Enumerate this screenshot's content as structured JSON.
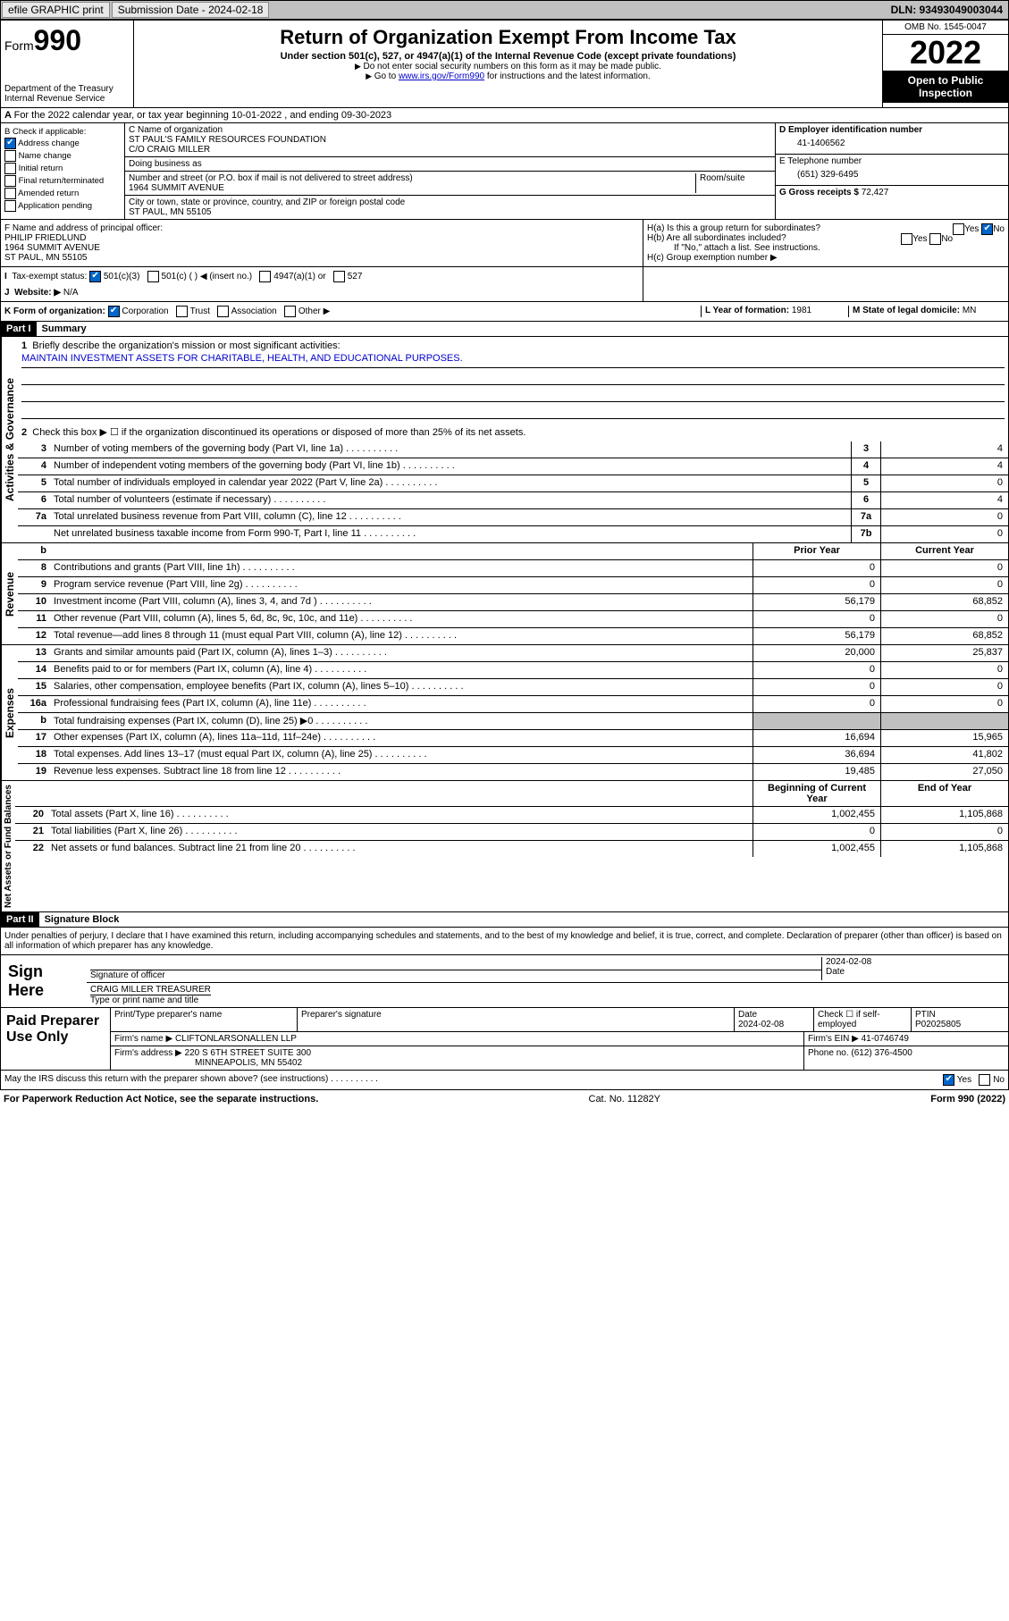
{
  "topbar": {
    "efile": "efile GRAPHIC print",
    "subdate_label": "Submission Date - 2024-02-18",
    "dln": "DLN: 93493049003044"
  },
  "header": {
    "form_label": "Form",
    "form_num": "990",
    "dept": "Department of the Treasury",
    "irs": "Internal Revenue Service",
    "title": "Return of Organization Exempt From Income Tax",
    "sub": "Under section 501(c), 527, or 4947(a)(1) of the Internal Revenue Code (except private foundations)",
    "note1": "Do not enter social security numbers on this form as it may be made public.",
    "note2_a": "Go to ",
    "note2_link": "www.irs.gov/Form990",
    "note2_b": " for instructions and the latest information.",
    "omb": "OMB No. 1545-0047",
    "year": "2022",
    "open": "Open to Public Inspection"
  },
  "row_a": "For the 2022 calendar year, or tax year beginning 10-01-2022   , and ending 09-30-2023",
  "box_b": {
    "title": "B Check if applicable:",
    "items": [
      "Address change",
      "Name change",
      "Initial return",
      "Final return/terminated",
      "Amended return",
      "Application pending"
    ],
    "checked": [
      true,
      false,
      false,
      false,
      false,
      false
    ]
  },
  "box_c": {
    "name_label": "C Name of organization",
    "name": "ST PAUL'S FAMILY RESOURCES FOUNDATION",
    "co": "C/O CRAIG MILLER",
    "dba_label": "Doing business as",
    "dba": "",
    "street_label": "Number and street (or P.O. box if mail is not delivered to street address)",
    "room_label": "Room/suite",
    "street": "1964 SUMMIT AVENUE",
    "city_label": "City or town, state or province, country, and ZIP or foreign postal code",
    "city": "ST PAUL, MN  55105"
  },
  "box_d": {
    "label": "D Employer identification number",
    "val": "41-1406562"
  },
  "box_e": {
    "label": "E Telephone number",
    "val": "(651) 329-6495"
  },
  "box_g": {
    "label": "G Gross receipts $",
    "val": "72,427"
  },
  "box_f": {
    "label": "F  Name and address of principal officer:",
    "name": "PHILIP FRIEDLUND",
    "street": "1964 SUMMIT AVENUE",
    "city": "ST PAUL, MN  55105"
  },
  "box_h": {
    "ha": "H(a)  Is this a group return for subordinates?",
    "hb": "H(b)  Are all subordinates included?",
    "hb_note": "If \"No,\" attach a list. See instructions.",
    "hc": "H(c)  Group exemption number ▶"
  },
  "box_i": {
    "label": "Tax-exempt status:",
    "opts": [
      "501(c)(3)",
      "501(c) (  ) ◀ (insert no.)",
      "4947(a)(1) or",
      "527"
    ]
  },
  "box_j": {
    "label": "Website: ▶",
    "val": "N/A"
  },
  "box_k": {
    "label": "K Form of organization:",
    "opts": [
      "Corporation",
      "Trust",
      "Association",
      "Other ▶"
    ]
  },
  "box_l": {
    "label": "L Year of formation:",
    "val": "1981"
  },
  "box_m": {
    "label": "M State of legal domicile:",
    "val": "MN"
  },
  "part1": {
    "hdr": "Part I",
    "title": "Summary",
    "q1": "Briefly describe the organization's mission or most significant activities:",
    "mission": "MAINTAIN INVESTMENT ASSETS FOR CHARITABLE, HEALTH, AND EDUCATIONAL PURPOSES.",
    "q2": "Check this box ▶ ☐  if the organization discontinued its operations or disposed of more than 25% of its net assets.",
    "lines_gov": [
      {
        "n": "3",
        "d": "Number of voting members of the governing body (Part VI, line 1a)",
        "b": "3",
        "v": "4"
      },
      {
        "n": "4",
        "d": "Number of independent voting members of the governing body (Part VI, line 1b)",
        "b": "4",
        "v": "4"
      },
      {
        "n": "5",
        "d": "Total number of individuals employed in calendar year 2022 (Part V, line 2a)",
        "b": "5",
        "v": "0"
      },
      {
        "n": "6",
        "d": "Total number of volunteers (estimate if necessary)",
        "b": "6",
        "v": "4"
      },
      {
        "n": "7a",
        "d": "Total unrelated business revenue from Part VIII, column (C), line 12",
        "b": "7a",
        "v": "0"
      },
      {
        "n": "",
        "d": "Net unrelated business taxable income from Form 990-T, Part I, line 11",
        "b": "7b",
        "v": "0"
      }
    ],
    "col_hdr": {
      "b": "b",
      "py": "Prior Year",
      "cy": "Current Year"
    },
    "lines_rev": [
      {
        "n": "8",
        "d": "Contributions and grants (Part VIII, line 1h)",
        "py": "0",
        "cy": "0"
      },
      {
        "n": "9",
        "d": "Program service revenue (Part VIII, line 2g)",
        "py": "0",
        "cy": "0"
      },
      {
        "n": "10",
        "d": "Investment income (Part VIII, column (A), lines 3, 4, and 7d )",
        "py": "56,179",
        "cy": "68,852"
      },
      {
        "n": "11",
        "d": "Other revenue (Part VIII, column (A), lines 5, 6d, 8c, 9c, 10c, and 11e)",
        "py": "0",
        "cy": "0"
      },
      {
        "n": "12",
        "d": "Total revenue—add lines 8 through 11 (must equal Part VIII, column (A), line 12)",
        "py": "56,179",
        "cy": "68,852"
      }
    ],
    "lines_exp": [
      {
        "n": "13",
        "d": "Grants and similar amounts paid (Part IX, column (A), lines 1–3)",
        "py": "20,000",
        "cy": "25,837"
      },
      {
        "n": "14",
        "d": "Benefits paid to or for members (Part IX, column (A), line 4)",
        "py": "0",
        "cy": "0"
      },
      {
        "n": "15",
        "d": "Salaries, other compensation, employee benefits (Part IX, column (A), lines 5–10)",
        "py": "0",
        "cy": "0"
      },
      {
        "n": "16a",
        "d": "Professional fundraising fees (Part IX, column (A), line 11e)",
        "py": "0",
        "cy": "0"
      },
      {
        "n": "b",
        "d": "Total fundraising expenses (Part IX, column (D), line 25) ▶0",
        "py": "",
        "cy": "",
        "grey": true
      },
      {
        "n": "17",
        "d": "Other expenses (Part IX, column (A), lines 11a–11d, 11f–24e)",
        "py": "16,694",
        "cy": "15,965"
      },
      {
        "n": "18",
        "d": "Total expenses. Add lines 13–17 (must equal Part IX, column (A), line 25)",
        "py": "36,694",
        "cy": "41,802"
      },
      {
        "n": "19",
        "d": "Revenue less expenses. Subtract line 18 from line 12",
        "py": "19,485",
        "cy": "27,050"
      }
    ],
    "col_hdr2": {
      "py": "Beginning of Current Year",
      "cy": "End of Year"
    },
    "lines_net": [
      {
        "n": "20",
        "d": "Total assets (Part X, line 16)",
        "py": "1,002,455",
        "cy": "1,105,868"
      },
      {
        "n": "21",
        "d": "Total liabilities (Part X, line 26)",
        "py": "0",
        "cy": "0"
      },
      {
        "n": "22",
        "d": "Net assets or fund balances. Subtract line 21 from line 20",
        "py": "1,002,455",
        "cy": "1,105,868"
      }
    ],
    "vlabels": [
      "Activities & Governance",
      "Revenue",
      "Expenses",
      "Net Assets or Fund Balances"
    ]
  },
  "part2": {
    "hdr": "Part II",
    "title": "Signature Block",
    "perjury": "Under penalties of perjury, I declare that I have examined this return, including accompanying schedules and statements, and to the best of my knowledge and belief, it is true, correct, and complete. Declaration of preparer (other than officer) is based on all information of which preparer has any knowledge.",
    "sign_here": "Sign Here",
    "sig_officer": "Signature of officer",
    "sig_date": "2024-02-08",
    "date_label": "Date",
    "officer_name": "CRAIG MILLER  TREASURER",
    "officer_label": "Type or print name and title",
    "paid": "Paid Preparer Use Only",
    "p_name_label": "Print/Type preparer's name",
    "p_sig_label": "Preparer's signature",
    "p_date_label": "Date",
    "p_date": "2024-02-08",
    "p_check": "Check ☐ if self-employed",
    "ptin_label": "PTIN",
    "ptin": "P02025805",
    "firm_name_label": "Firm's name    ▶",
    "firm_name": "CLIFTONLARSONALLEN LLP",
    "firm_ein_label": "Firm's EIN ▶",
    "firm_ein": "41-0746749",
    "firm_addr_label": "Firm's address ▶",
    "firm_addr": "220 S 6TH STREET SUITE 300",
    "firm_city": "MINNEAPOLIS, MN  55402",
    "phone_label": "Phone no.",
    "phone": "(612) 376-4500",
    "may_irs": "May the IRS discuss this return with the preparer shown above? (see instructions)",
    "yes": "Yes",
    "no": "No"
  },
  "footer": {
    "left": "For Paperwork Reduction Act Notice, see the separate instructions.",
    "mid": "Cat. No. 11282Y",
    "right": "Form 990 (2022)"
  }
}
